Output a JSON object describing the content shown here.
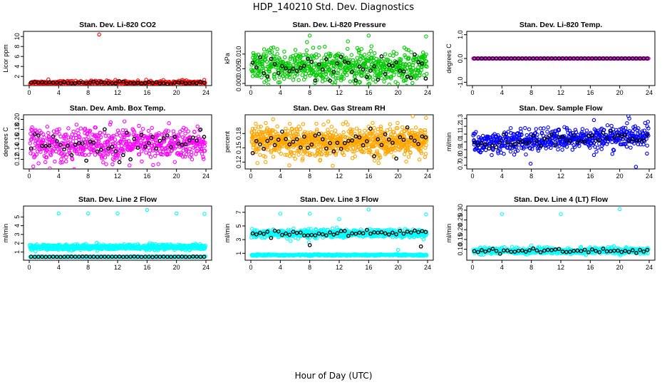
{
  "title": "HDP_140210  Std. Dev. Diagnostics",
  "xlabel": "Hour of Day (UTC)",
  "chart_data": [
    {
      "type": "scatter",
      "title": "Stan. Dev. Li-820 CO2",
      "ylabel": "Licor ppm",
      "xlim": [
        0,
        24
      ],
      "ylim": [
        0.6,
        10.6
      ],
      "xticks": [
        "0",
        "4",
        "8",
        "12",
        "16",
        "20",
        "24"
      ],
      "yticks": [
        {
          "v": 2,
          "label": "2"
        },
        {
          "v": 4,
          "label": "4"
        },
        {
          "v": 6,
          "label": "6"
        },
        {
          "v": 8,
          "label": "8"
        },
        {
          "v": 10,
          "label": "10"
        }
      ],
      "series": [
        {
          "color": "#ff0000",
          "base": 0.75,
          "noise": 0.2,
          "n": 300,
          "outliers": [
            [
              9.5,
              10.4
            ],
            [
              2.6,
              1.4
            ],
            [
              11.7,
              1.3
            ],
            [
              19.6,
              1.0
            ],
            [
              0.4,
              0.9
            ]
          ]
        },
        {
          "color": "#000000",
          "base": 0.75,
          "noise": 0.12,
          "n": 48
        }
      ]
    },
    {
      "type": "scatter",
      "title": "Stan. Dev. Li-820 Pressure",
      "ylabel": "kPa",
      "xlim": [
        0,
        24
      ],
      "ylim": [
        0,
        0.017
      ],
      "xticks": [
        "0",
        "4",
        "8",
        "12",
        "16",
        "20",
        "24"
      ],
      "yticks": [
        {
          "v": 0,
          "label": "0.000"
        },
        {
          "v": 0.005,
          "label": "0.005"
        },
        {
          "v": 0.01,
          "label": "0.010"
        }
      ],
      "series": [
        {
          "color": "#00cc00",
          "base": 0.0055,
          "noise": 0.0028,
          "n": 700,
          "outliers": [
            [
              8,
              0.0163
            ],
            [
              16,
              0.0163
            ],
            [
              23.8,
              0.016
            ],
            [
              14.7,
              0.0105
            ],
            [
              16.3,
              0.011
            ]
          ]
        },
        {
          "color": "#000000",
          "base": 0.005,
          "noise": 0.0022,
          "n": 48
        }
      ]
    },
    {
      "type": "scatter",
      "title": "Stan. Dev. Li-820 Temp.",
      "ylabel": "degrees C",
      "xlim": [
        0,
        24
      ],
      "ylim": [
        -1.05,
        1.05
      ],
      "xticks": [
        "0",
        "4",
        "8",
        "12",
        "16",
        "20",
        "24"
      ],
      "yticks": [
        {
          "v": -1,
          "label": "-1.0"
        },
        {
          "v": 0,
          "label": "0.0"
        },
        {
          "v": 1,
          "label": "1.0"
        }
      ],
      "series": [
        {
          "color": "#ff00ff",
          "base": 0,
          "noise": 0,
          "n": 260
        },
        {
          "color": "#000000",
          "base": 0,
          "noise": 0,
          "n": 48
        }
      ]
    },
    {
      "type": "scatter",
      "title": "Stan. Dev. Amb. Box Temp.",
      "ylabel": "degrees C",
      "xlim": [
        0,
        24
      ],
      "ylim": [
        0.105,
        0.205
      ],
      "xticks": [
        "0",
        "4",
        "8",
        "12",
        "16",
        "20",
        "24"
      ],
      "yticks": [
        {
          "v": 0.12,
          "label": "0.12"
        },
        {
          "v": 0.14,
          "label": "0.14"
        },
        {
          "v": 0.16,
          "label": "0.16"
        },
        {
          "v": 0.18,
          "label": "0.18"
        },
        {
          "v": 0.2,
          "label": "0.20"
        }
      ],
      "series": [
        {
          "color": "#ff00ff",
          "base": 0.15,
          "noise": 0.017,
          "n": 600
        },
        {
          "color": "#000000",
          "base": 0.15,
          "noise": 0.014,
          "n": 48
        }
      ]
    },
    {
      "type": "scatter",
      "title": "Stan. Dev. Gas Stream RH",
      "ylabel": "percent",
      "xlim": [
        0,
        24
      ],
      "ylim": [
        0.11,
        0.215
      ],
      "xticks": [
        "0",
        "4",
        "8",
        "12",
        "16",
        "20",
        "24"
      ],
      "yticks": [
        {
          "v": 0.12,
          "label": "0.12"
        },
        {
          "v": 0.15,
          "label": "0.15"
        },
        {
          "v": 0.18,
          "label": "0.18"
        }
      ],
      "series": [
        {
          "color": "#ffa500",
          "base": 0.163,
          "noise": 0.015,
          "n": 900,
          "outliers": [
            [
              23.8,
              0.213
            ],
            [
              7.1,
              0.2
            ],
            [
              3.6,
              0.195
            ],
            [
              2.0,
              0.12
            ],
            [
              12.5,
              0.2
            ]
          ]
        },
        {
          "color": "#000000",
          "base": 0.163,
          "noise": 0.012,
          "n": 48
        }
      ]
    },
    {
      "type": "scatter",
      "title": "Stan. Dev. Sample Flow",
      "ylabel": "ml/min",
      "xlim": [
        0,
        24
      ],
      "ylim": [
        0.68,
        1.32
      ],
      "xticks": [
        "0",
        "4",
        "8",
        "12",
        "16",
        "20",
        "24"
      ],
      "yticks": [
        {
          "v": 0.7,
          "label": "0.7"
        },
        {
          "v": 0.8,
          "label": "0.8"
        },
        {
          "v": 0.9,
          "label": "0.9"
        },
        {
          "v": 1.0,
          "label": "1.0"
        },
        {
          "v": 1.1,
          "label": "1.1"
        },
        {
          "v": 1.2,
          "label": "1.2"
        },
        {
          "v": 1.3,
          "label": "1.3"
        }
      ],
      "series": [
        {
          "color": "#0000ff",
          "base": 1.03,
          "noise": 0.07,
          "n": 600,
          "trend": 0.004,
          "outliers": [
            [
              7.9,
              0.72
            ],
            [
              22.2,
              0.68
            ],
            [
              21.3,
              1.3
            ],
            [
              23.7,
              0.85
            ],
            [
              16.5,
              1.28
            ]
          ]
        },
        {
          "color": "#000000",
          "base": 1.03,
          "noise": 0.04,
          "n": 48,
          "trend": 0.004
        }
      ]
    },
    {
      "type": "scatter",
      "title": "Stan. Dev. Line 2 Flow",
      "ylabel": "ml/min",
      "xlim": [
        0,
        24
      ],
      "ylim": [
        0.3,
        6.0
      ],
      "xticks": [
        "0",
        "4",
        "8",
        "12",
        "16",
        "20",
        "24"
      ],
      "yticks": [
        {
          "v": 1,
          "label": "1"
        },
        {
          "v": 2,
          "label": "2"
        },
        {
          "v": 3,
          "label": "3"
        },
        {
          "v": 4,
          "label": "4"
        },
        {
          "v": 5,
          "label": "5"
        }
      ],
      "series": [
        {
          "color": "#00ffff",
          "base": 1.55,
          "noise": 0.15,
          "n": 700,
          "outliers": [
            [
              4,
              5.4
            ],
            [
              8,
              5.4
            ],
            [
              12,
              5.4
            ],
            [
              16,
              5.8
            ],
            [
              20,
              5.4
            ],
            [
              23.8,
              5.35
            ]
          ]
        },
        {
          "color": "#00ffff",
          "base": 0.45,
          "noise": 0.02,
          "n": 300
        },
        {
          "color": "#000000",
          "base": 0.45,
          "noise": 0.01,
          "n": 48
        }
      ]
    },
    {
      "type": "scatter",
      "title": "Stan. Dev. Line 3 Flow",
      "ylabel": "ml/min",
      "xlim": [
        0,
        24
      ],
      "ylim": [
        0.3,
        7.6
      ],
      "xticks": [
        "0",
        "4",
        "8",
        "12",
        "16",
        "20",
        "24"
      ],
      "yticks": [
        {
          "v": 1,
          "label": "1"
        },
        {
          "v": 3,
          "label": "3"
        },
        {
          "v": 5,
          "label": "5"
        },
        {
          "v": 7,
          "label": "7"
        }
      ],
      "series": [
        {
          "color": "#00ffff",
          "base": 3.9,
          "noise": 0.3,
          "n": 600,
          "outliers": [
            [
              4,
              6.8
            ],
            [
              8,
              6.8
            ],
            [
              16,
              7.4
            ],
            [
              23.8,
              6.7
            ],
            [
              12,
              6.0
            ],
            [
              5.4,
              2.8
            ],
            [
              7.9,
              2.6
            ],
            [
              20,
              1.5
            ]
          ]
        },
        {
          "color": "#00ffff",
          "base": 0.75,
          "noise": 0.05,
          "n": 400
        },
        {
          "color": "#000000",
          "base": 3.9,
          "noise": 0.25,
          "n": 48,
          "outliers": [
            [
              8,
              2.2
            ],
            [
              23.1,
              2.0
            ]
          ]
        }
      ]
    },
    {
      "type": "scatter",
      "title": "Stan. Dev. Line 4 (LT) Flow",
      "ylabel": "ml/min",
      "xlim": [
        0,
        24
      ],
      "ylim": [
        0.055,
        0.31
      ],
      "xticks": [
        "0",
        "4",
        "8",
        "12",
        "16",
        "20",
        "24"
      ],
      "yticks": [
        {
          "v": 0.1,
          "label": "0.10"
        },
        {
          "v": 0.15,
          "label": "0.15"
        },
        {
          "v": 0.2,
          "label": "0.20"
        },
        {
          "v": 0.25,
          "label": "0.25"
        },
        {
          "v": 0.3,
          "label": "0.30"
        }
      ],
      "series": [
        {
          "color": "#00ffff",
          "base": 0.092,
          "noise": 0.008,
          "n": 600,
          "outliers": [
            [
              4,
              0.28
            ],
            [
              12,
              0.28
            ],
            [
              20,
              0.305
            ],
            [
              8,
              0.12
            ],
            [
              16,
              0.11
            ]
          ]
        },
        {
          "color": "#000000",
          "base": 0.092,
          "noise": 0.006,
          "n": 48
        }
      ]
    }
  ]
}
